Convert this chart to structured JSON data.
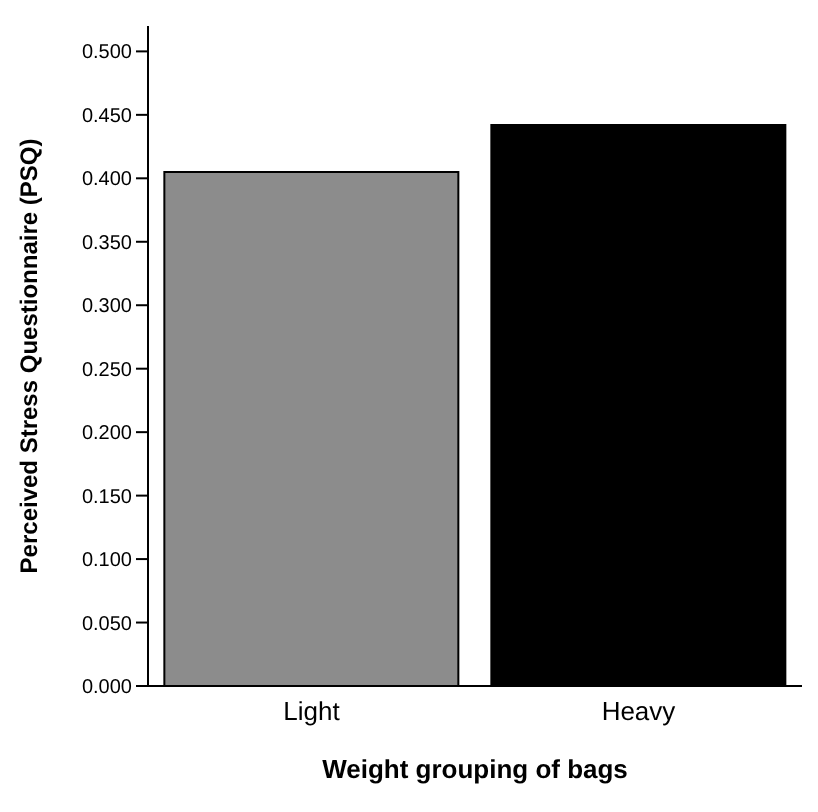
{
  "chart_data": {
    "type": "bar",
    "xlabel": "Weight grouping of bags",
    "ylabel": "Perceived Stress Questionnaire (PSQ)",
    "categories": [
      "Light",
      "Heavy"
    ],
    "values": [
      0.405,
      0.442
    ],
    "colors": [
      "#8c8c8c",
      "#000000"
    ],
    "ylim": [
      0,
      0.52
    ],
    "yticks": [
      {
        "value": 0,
        "label": "0.000"
      },
      {
        "value": 0.05,
        "label": "0.050"
      },
      {
        "value": 0.1,
        "label": "0.100"
      },
      {
        "value": 0.15,
        "label": "0.150"
      },
      {
        "value": 0.2,
        "label": "0.200"
      },
      {
        "value": 0.25,
        "label": "0.250"
      },
      {
        "value": 0.3,
        "label": "0.300"
      },
      {
        "value": 0.35,
        "label": "0.350"
      },
      {
        "value": 0.4,
        "label": "0.400"
      },
      {
        "value": 0.45,
        "label": "0.450"
      },
      {
        "value": 0.5,
        "label": "0.500"
      }
    ],
    "grid": false,
    "legend": false
  }
}
